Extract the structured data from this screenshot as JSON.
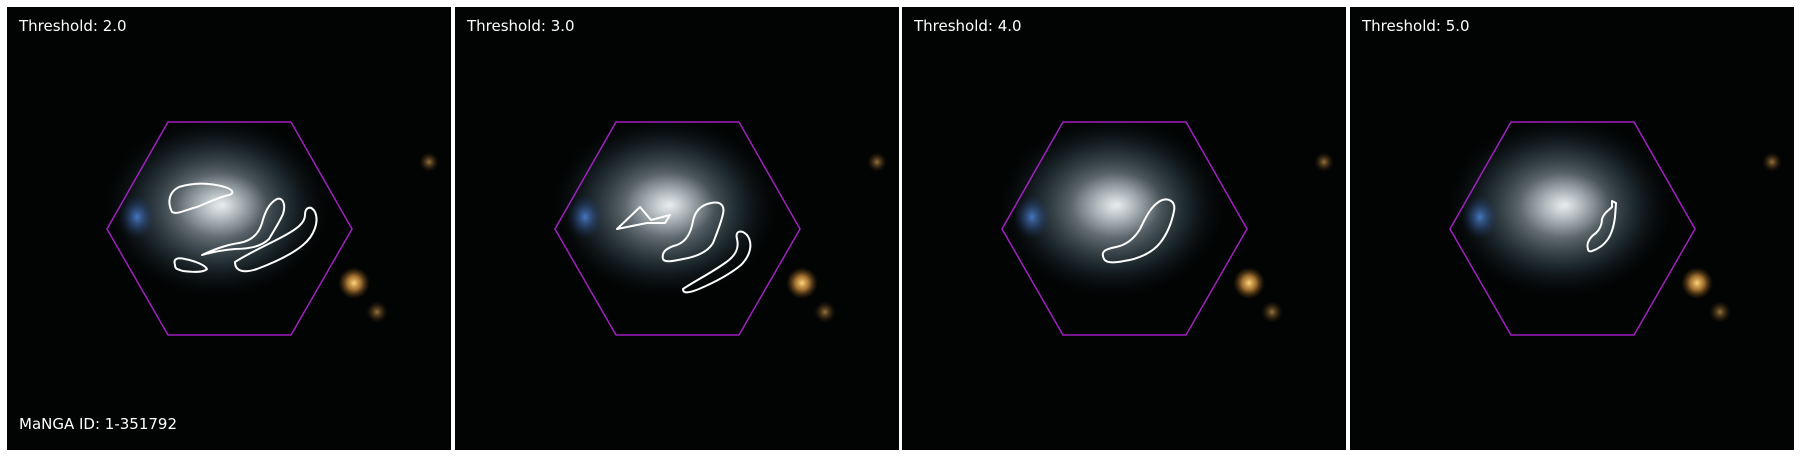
{
  "figure": {
    "manga_id_label": "MaNGA ID: 1-351792",
    "panels": [
      {
        "threshold_label": "Threshold: 2.0"
      },
      {
        "threshold_label": "Threshold: 3.0"
      },
      {
        "threshold_label": "Threshold: 4.0"
      },
      {
        "threshold_label": "Threshold: 5.0"
      }
    ],
    "colors": {
      "hexagon": "#a020c0",
      "contour": "#ffffff",
      "background": "#020303"
    }
  }
}
